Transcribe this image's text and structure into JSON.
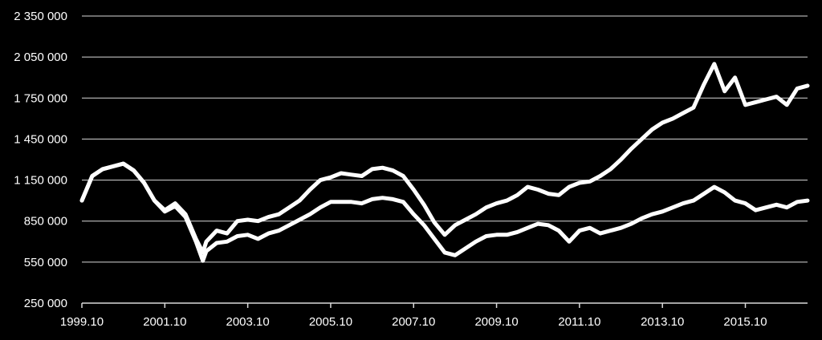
{
  "chart_data": {
    "type": "line",
    "title": "",
    "xlabel": "",
    "ylabel": "",
    "ylim": [
      250000,
      2350000
    ],
    "y_ticks": [
      250000,
      550000,
      850000,
      1150000,
      1450000,
      1750000,
      2050000,
      2350000
    ],
    "y_tick_labels": [
      "250 000",
      "550 000",
      "850 000",
      "1 150 000",
      "1 450 000",
      "1 750 000",
      "2 050 000",
      "2 350 000"
    ],
    "x_range": [
      "1999.10",
      "2017.04"
    ],
    "x_ticks": [
      "1999.10",
      "2001.10",
      "2003.10",
      "2005.10",
      "2007.10",
      "2009.10",
      "2011.10",
      "2013.10",
      "2015.10"
    ],
    "grid": true,
    "legend": "none",
    "colors": {
      "background": "#000000",
      "series": "#ffffff",
      "grid": "#d9d9d9"
    },
    "series": [
      {
        "x": [
          "1999.10",
          "2000.01",
          "2000.04",
          "2000.07",
          "2000.10",
          "2001.01",
          "2001.04",
          "2001.07",
          "2001.10",
          "2002.01",
          "2002.04",
          "2002.07",
          "2002.09",
          "2002.10",
          "2003.01",
          "2003.04",
          "2003.07",
          "2003.10",
          "2004.01",
          "2004.04",
          "2004.07",
          "2004.10",
          "2005.01",
          "2005.04",
          "2005.07",
          "2005.10",
          "2006.01",
          "2006.04",
          "2006.07",
          "2006.10",
          "2007.01",
          "2007.04",
          "2007.07",
          "2007.10",
          "2008.01",
          "2008.04",
          "2008.07",
          "2008.10",
          "2009.01",
          "2009.04",
          "2009.07",
          "2009.10",
          "2010.01",
          "2010.04",
          "2010.07",
          "2010.10",
          "2011.01",
          "2011.04",
          "2011.07",
          "2011.10",
          "2012.01",
          "2012.04",
          "2012.07",
          "2012.10",
          "2013.01",
          "2013.04",
          "2013.07",
          "2013.10",
          "2014.01",
          "2014.04",
          "2014.07",
          "2014.10",
          "2015.01",
          "2015.04",
          "2015.07",
          "2015.10",
          "2016.01",
          "2016.04",
          "2016.07",
          "2016.10",
          "2017.01",
          "2017.04"
        ],
        "values": [
          1000000,
          1180000,
          1230000,
          1250000,
          1270000,
          1220000,
          1130000,
          1000000,
          930000,
          980000,
          900000,
          720000,
          620000,
          700000,
          780000,
          760000,
          850000,
          860000,
          850000,
          880000,
          900000,
          950000,
          1000000,
          1080000,
          1150000,
          1170000,
          1200000,
          1190000,
          1180000,
          1230000,
          1240000,
          1220000,
          1180000,
          1080000,
          970000,
          840000,
          750000,
          820000,
          860000,
          900000,
          950000,
          980000,
          1000000,
          1040000,
          1100000,
          1080000,
          1050000,
          1040000,
          1100000,
          1130000,
          1140000,
          1180000,
          1230000,
          1300000,
          1380000,
          1450000,
          1520000,
          1570000,
          1600000,
          1640000,
          1680000,
          1850000,
          2000000,
          1800000,
          1900000,
          1700000,
          1720000,
          1740000,
          1760000,
          1700000,
          1820000,
          1840000
        ]
      },
      {
        "x": [
          "1999.10",
          "2000.01",
          "2000.04",
          "2000.07",
          "2000.10",
          "2001.01",
          "2001.04",
          "2001.07",
          "2001.10",
          "2002.01",
          "2002.04",
          "2002.07",
          "2002.09",
          "2002.10",
          "2003.01",
          "2003.04",
          "2003.07",
          "2003.10",
          "2004.01",
          "2004.04",
          "2004.07",
          "2004.10",
          "2005.01",
          "2005.04",
          "2005.07",
          "2005.10",
          "2006.01",
          "2006.04",
          "2006.07",
          "2006.10",
          "2007.01",
          "2007.04",
          "2007.07",
          "2007.10",
          "2008.01",
          "2008.04",
          "2008.07",
          "2008.10",
          "2009.01",
          "2009.04",
          "2009.07",
          "2009.10",
          "2010.01",
          "2010.04",
          "2010.07",
          "2010.10",
          "2011.01",
          "2011.04",
          "2011.07",
          "2011.10",
          "2012.01",
          "2012.04",
          "2012.07",
          "2012.10",
          "2013.01",
          "2013.04",
          "2013.07",
          "2013.10",
          "2014.01",
          "2014.04",
          "2014.07",
          "2014.10",
          "2015.01",
          "2015.04",
          "2015.07",
          "2015.10",
          "2016.01",
          "2016.04",
          "2016.07",
          "2016.10",
          "2017.01",
          "2017.04"
        ],
        "values": [
          1000000,
          1180000,
          1230000,
          1250000,
          1270000,
          1220000,
          1130000,
          1000000,
          920000,
          960000,
          880000,
          700000,
          560000,
          630000,
          690000,
          700000,
          740000,
          750000,
          720000,
          760000,
          780000,
          820000,
          860000,
          900000,
          950000,
          990000,
          990000,
          990000,
          980000,
          1010000,
          1020000,
          1010000,
          990000,
          900000,
          820000,
          720000,
          620000,
          600000,
          650000,
          700000,
          740000,
          750000,
          750000,
          770000,
          800000,
          830000,
          820000,
          780000,
          700000,
          780000,
          800000,
          760000,
          780000,
          800000,
          830000,
          870000,
          900000,
          920000,
          950000,
          980000,
          1000000,
          1050000,
          1100000,
          1060000,
          1000000,
          980000,
          930000,
          950000,
          970000,
          950000,
          990000,
          1000000
        ]
      }
    ]
  }
}
